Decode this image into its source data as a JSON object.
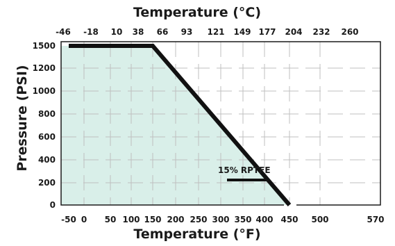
{
  "chart_data": {
    "type": "area",
    "title": "",
    "top_axis_title": "Temperature (°C)",
    "top_ticks": [
      "-46",
      "-18",
      "10",
      "38",
      "66",
      "93",
      "121",
      "149",
      "177",
      "204",
      "232",
      "260"
    ],
    "xlabel": "Temperature (°F)",
    "ylabel": "Pressure (PSI)",
    "x_ticks": [
      "-50",
      "0",
      "50",
      "100",
      "150",
      "200",
      "250",
      "300",
      "350",
      "400",
      "450",
      "500",
      "570"
    ],
    "y_ticks": [
      "0",
      "200",
      "400",
      "600",
      "800",
      "1000",
      "1200",
      "1500"
    ],
    "grid": true,
    "series": [
      {
        "name": "15% RPTFE",
        "x": [
          -50,
          150,
          450
        ],
        "y": [
          1500,
          1500,
          0
        ]
      }
    ],
    "colors": {
      "fill": "#d9efe9",
      "line": "#111111",
      "grid": "#bfbfbf",
      "frame": "#1a1a1a"
    }
  }
}
